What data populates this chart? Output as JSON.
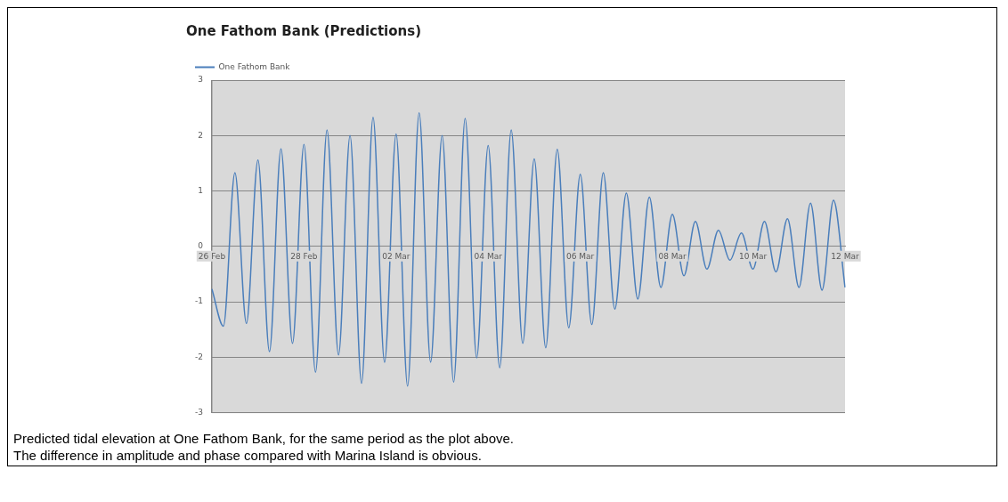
{
  "chart_data": {
    "type": "line",
    "title": "One Fathom Bank (Predictions)",
    "categories": [
      "26 Feb",
      null,
      null,
      null,
      null,
      null,
      null,
      null,
      "28 Feb",
      null,
      null,
      null,
      null,
      null,
      null,
      null,
      "02 Mar",
      null,
      null,
      null,
      null,
      null,
      null,
      null,
      "04 Mar",
      null,
      null,
      null,
      null,
      null,
      null,
      null,
      "06 Mar",
      null,
      null,
      null,
      null,
      null,
      null,
      null,
      "08 Mar",
      null,
      null,
      null,
      null,
      null,
      null,
      "10 Mar",
      null,
      null,
      null,
      null,
      null,
      null,
      null,
      "12 Mar"
    ],
    "series": [
      {
        "name": "One Fathom Bank",
        "color": "#4a7ebb",
        "values": [
          -0.77,
          -1.44,
          1.33,
          -1.39,
          1.56,
          -1.9,
          1.76,
          -1.75,
          1.84,
          -2.27,
          2.1,
          -1.96,
          2.0,
          -2.47,
          2.33,
          -2.09,
          2.03,
          -2.52,
          2.41,
          -2.09,
          2.0,
          -2.45,
          2.31,
          -2.01,
          1.82,
          -2.19,
          2.1,
          -1.75,
          1.58,
          -1.83,
          1.75,
          -1.47,
          1.3,
          -1.41,
          1.33,
          -1.13,
          0.96,
          -0.95,
          0.89,
          -0.74,
          0.58,
          -0.53,
          0.45,
          -0.41,
          0.29,
          -0.25,
          0.24,
          -0.41,
          0.45,
          -0.46,
          0.5,
          -0.74,
          0.78,
          -0.79,
          0.83,
          -0.74
        ]
      }
    ],
    "ylim": [
      -3,
      3
    ],
    "yticks": [
      -3,
      -2,
      -1,
      0,
      1,
      2,
      3
    ],
    "grid": "y",
    "legend": "top left",
    "marker": "none",
    "line_style": "solid",
    "annotations": [
      "Predicted tidal elevation at One Fathom Bank, for the same period as the plot above.",
      "The difference in amplitude and phase compared with Marina Island is obvious."
    ]
  }
}
